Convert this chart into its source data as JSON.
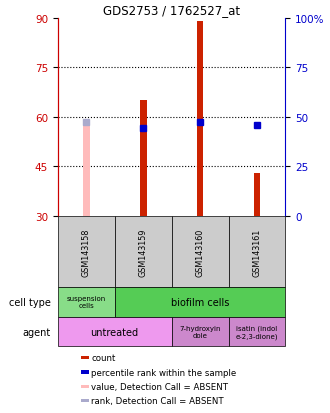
{
  "title": "GDS2753 / 1762527_at",
  "samples": [
    "GSM143158",
    "GSM143159",
    "GSM143160",
    "GSM143161"
  ],
  "red_bars": {
    "GSM143158": null,
    "GSM143159": [
      30,
      65
    ],
    "GSM143160": [
      30,
      89
    ],
    "GSM143161": [
      30,
      43
    ]
  },
  "pink_bars": {
    "GSM143158": [
      30,
      59
    ],
    "GSM143159": null,
    "GSM143160": null,
    "GSM143161": null
  },
  "blue_squares": {
    "GSM143158": null,
    "GSM143159": 56.5,
    "GSM143160": 58.5,
    "GSM143161": 57.5
  },
  "light_blue_squares": {
    "GSM143158": 58.5,
    "GSM143159": null,
    "GSM143160": null,
    "GSM143161": null
  },
  "ylim": [
    30,
    90
  ],
  "yticks_left": [
    30,
    45,
    60,
    75,
    90
  ],
  "yticks_right": [
    0,
    25,
    50,
    75,
    100
  ],
  "dotted_lines": [
    45,
    60,
    75
  ],
  "left_axis_color": "#cc0000",
  "right_axis_color": "#0000cc",
  "bar_color_red": "#cc2200",
  "bar_color_pink": "#ffbbbb",
  "square_color_blue": "#0000cc",
  "square_color_lightblue": "#aaaacc",
  "bar_width": 0.12,
  "legend": [
    {
      "color": "#cc2200",
      "label": "count"
    },
    {
      "color": "#0000cc",
      "label": "percentile rank within the sample"
    },
    {
      "color": "#ffbbbb",
      "label": "value, Detection Call = ABSENT"
    },
    {
      "color": "#aaaacc",
      "label": "rank, Detection Call = ABSENT"
    }
  ]
}
